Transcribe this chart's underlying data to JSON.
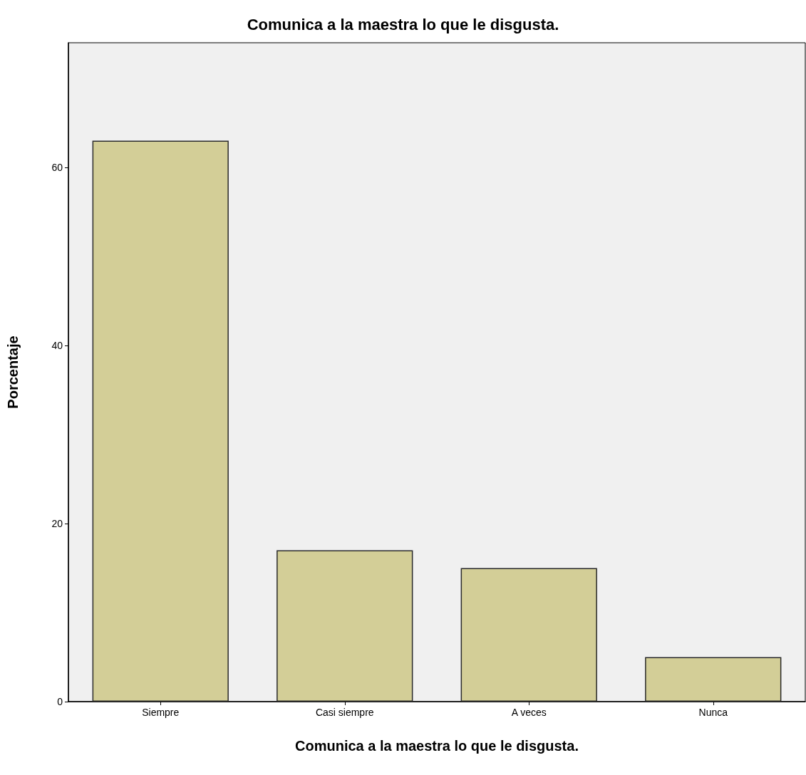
{
  "chart_data": {
    "type": "bar",
    "title": "Comunica a la maestra lo que le disgusta.",
    "xlabel": "Comunica a la maestra lo que le disgusta.",
    "ylabel": "Porcentaje",
    "categories": [
      "Siempre",
      "Casi siempre",
      "A veces",
      "Nunca"
    ],
    "values": [
      63,
      17,
      15,
      5
    ],
    "color": "#d3ce97",
    "ylim": [
      0,
      74
    ],
    "yticks": [
      0,
      20,
      40,
      60
    ],
    "grid": false
  }
}
